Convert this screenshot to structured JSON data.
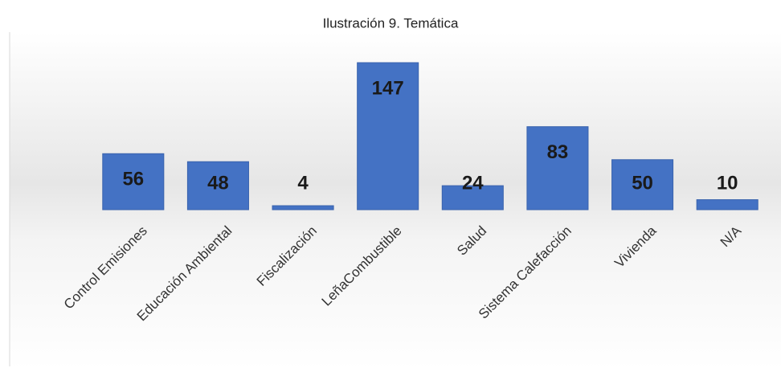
{
  "chart_data": {
    "type": "bar",
    "title": "Ilustración 9. Temática",
    "categories": [
      "Control Emisiones",
      "Educación Ambiental",
      "Fiscalización",
      "LeñaCombustible",
      "Salud",
      "Sistema Calefacción",
      "Vivienda",
      "N/A"
    ],
    "values": [
      56,
      48,
      4,
      147,
      24,
      83,
      50,
      10
    ],
    "color": "#4472c4"
  }
}
